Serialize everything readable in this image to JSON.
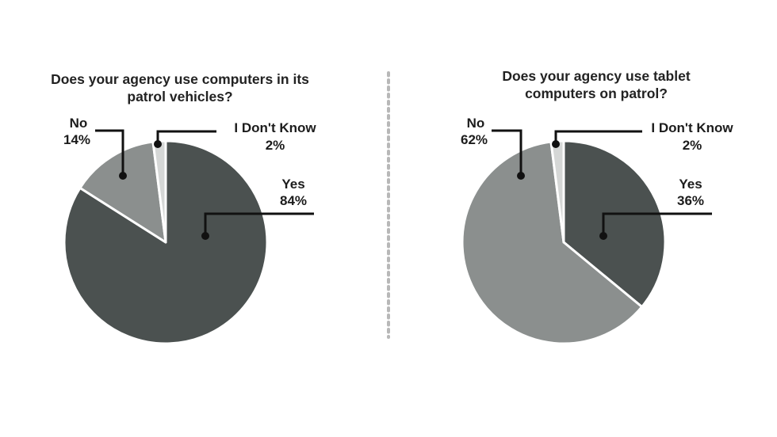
{
  "chart_data": [
    {
      "type": "pie",
      "title_lines": [
        "Does your agency use computers in its",
        "patrol vehicles?"
      ],
      "slices": [
        {
          "label": "Yes",
          "value": 84,
          "value_label": "84%",
          "color": "#4b5150"
        },
        {
          "label": "No",
          "value": 14,
          "value_label": "14%",
          "color": "#8b8f8e"
        },
        {
          "label": "I Don't Know",
          "value": 2,
          "value_label": "2%",
          "color": "#d5d7d6"
        }
      ]
    },
    {
      "type": "pie",
      "title_lines": [
        "Does your agency use tablet",
        "computers on patrol?"
      ],
      "slices": [
        {
          "label": "Yes",
          "value": 36,
          "value_label": "36%",
          "color": "#4b5150"
        },
        {
          "label": "No",
          "value": 62,
          "value_label": "62%",
          "color": "#8b8f8e"
        },
        {
          "label": "I Don't Know",
          "value": 2,
          "value_label": "2%",
          "color": "#d5d7d6"
        }
      ]
    }
  ],
  "divider_color": "#b8b8b8"
}
